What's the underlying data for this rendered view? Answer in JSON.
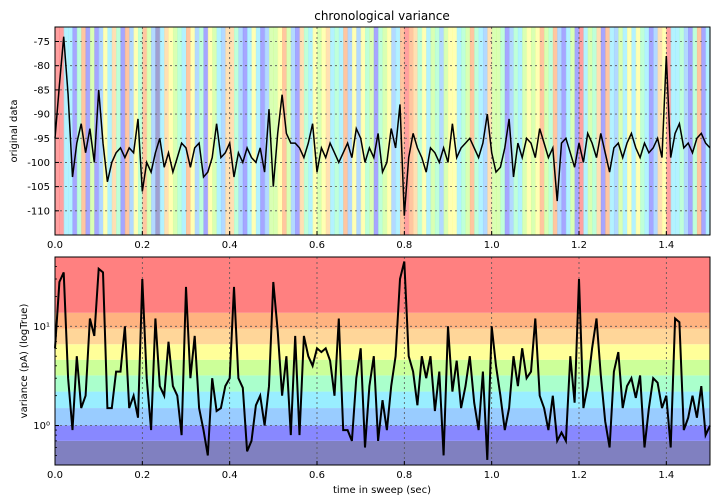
{
  "chart_data": [
    {
      "type": "line",
      "title": "chronological variance",
      "xlabel": "",
      "ylabel": "original data",
      "xlim": [
        0.0,
        1.5
      ],
      "ylim": [
        -115,
        -72
      ],
      "xticks": [
        0.0,
        0.2,
        0.4,
        0.6,
        0.8,
        1.0,
        1.2,
        1.4
      ],
      "xtick_labels": [
        "0.0",
        "0.2",
        "0.4",
        "0.6",
        "0.8",
        "1.0",
        "1.2",
        "1.4"
      ],
      "yticks": [
        -75,
        -80,
        -85,
        -90,
        -95,
        -100,
        -105,
        -110
      ],
      "ytick_labels": [
        "-75",
        "-80",
        "-85",
        "-90",
        "-95",
        "-100",
        "-105",
        "-110"
      ],
      "grid": true,
      "background": "vertical bands colored by variance level of each segment",
      "series": [
        {
          "color": "#000000",
          "x": [
            0.0,
            0.01,
            0.02,
            0.03,
            0.04,
            0.05,
            0.06,
            0.07,
            0.08,
            0.09,
            0.1,
            0.11,
            0.12,
            0.13,
            0.14,
            0.15,
            0.16,
            0.17,
            0.18,
            0.19,
            0.2,
            0.21,
            0.22,
            0.23,
            0.24,
            0.25,
            0.26,
            0.27,
            0.28,
            0.29,
            0.3,
            0.31,
            0.32,
            0.33,
            0.34,
            0.35,
            0.36,
            0.37,
            0.38,
            0.39,
            0.4,
            0.41,
            0.42,
            0.43,
            0.44,
            0.45,
            0.46,
            0.47,
            0.48,
            0.49,
            0.5,
            0.51,
            0.52,
            0.53,
            0.54,
            0.55,
            0.56,
            0.57,
            0.58,
            0.59,
            0.6,
            0.61,
            0.62,
            0.63,
            0.64,
            0.65,
            0.66,
            0.67,
            0.68,
            0.69,
            0.7,
            0.71,
            0.72,
            0.73,
            0.74,
            0.75,
            0.76,
            0.77,
            0.78,
            0.79,
            0.8,
            0.81,
            0.82,
            0.83,
            0.84,
            0.85,
            0.86,
            0.87,
            0.88,
            0.89,
            0.9,
            0.91,
            0.92,
            0.93,
            0.94,
            0.95,
            0.96,
            0.97,
            0.98,
            0.99,
            1.0,
            1.01,
            1.02,
            1.03,
            1.04,
            1.05,
            1.06,
            1.07,
            1.08,
            1.09,
            1.1,
            1.11,
            1.12,
            1.13,
            1.14,
            1.15,
            1.16,
            1.17,
            1.18,
            1.19,
            1.2,
            1.21,
            1.22,
            1.23,
            1.24,
            1.25,
            1.26,
            1.27,
            1.28,
            1.29,
            1.3,
            1.31,
            1.32,
            1.33,
            1.34,
            1.35,
            1.36,
            1.37,
            1.38,
            1.39,
            1.4,
            1.41,
            1.42,
            1.43,
            1.44,
            1.45,
            1.46,
            1.47,
            1.48,
            1.49,
            1.5
          ],
          "y": [
            -95,
            -84,
            -74,
            -86,
            -103,
            -96,
            -92,
            -98,
            -93,
            -100,
            -85,
            -96,
            -104,
            -100,
            -98,
            -97,
            -99,
            -97,
            -98,
            -91,
            -106,
            -100,
            -102,
            -98,
            -95,
            -101,
            -98,
            -102,
            -99,
            -96,
            -97,
            -101,
            -97,
            -96,
            -103,
            -102,
            -99,
            -92,
            -99,
            -98,
            -96,
            -103,
            -98,
            -100,
            -97,
            -99,
            -100,
            -97,
            -102,
            -89,
            -105,
            -94,
            -86,
            -94,
            -96,
            -96,
            -97,
            -99,
            -96,
            -92,
            -102,
            -97,
            -99,
            -96,
            -98,
            -100,
            -98,
            -96,
            -99,
            -93,
            -95,
            -100,
            -97,
            -99,
            -94,
            -102,
            -100,
            -93,
            -97,
            -88,
            -111,
            -99,
            -94,
            -97,
            -99,
            -102,
            -97,
            -98,
            -100,
            -97,
            -100,
            -92,
            -99,
            -97,
            -96,
            -95,
            -97,
            -99,
            -96,
            -90,
            -98,
            -102,
            -101,
            -97,
            -91,
            -103,
            -96,
            -99,
            -95,
            -96,
            -99,
            -93,
            -96,
            -99,
            -97,
            -108,
            -96,
            -95,
            -98,
            -101,
            -96,
            -100,
            -94,
            -96,
            -99,
            -94,
            -98,
            -102,
            -97,
            -96,
            -99,
            -96,
            -94,
            -97,
            -99,
            -96,
            -98,
            -97,
            -95,
            -99,
            -78,
            -99,
            -94,
            -92,
            -97,
            -96,
            -98,
            -95,
            -94,
            -96,
            -97
          ]
        }
      ]
    },
    {
      "type": "line",
      "title": "",
      "xlabel": "time in sweep (sec)",
      "ylabel": "variance (pA) (logTrue)",
      "xlim": [
        0.0,
        1.5
      ],
      "ylim": [
        0.4,
        50
      ],
      "yscale": "log",
      "xticks": [
        0.0,
        0.2,
        0.4,
        0.6,
        0.8,
        1.0,
        1.2,
        1.4
      ],
      "xtick_labels": [
        "0.0",
        "0.2",
        "0.4",
        "0.6",
        "0.8",
        "1.0",
        "1.2",
        "1.4"
      ],
      "yticks": [
        1,
        10
      ],
      "ytick_labels": [
        "10⁰",
        "10¹"
      ],
      "grid": true,
      "background": "horizontal color bands by variance level",
      "series": [
        {
          "color": "#000000",
          "x": [
            0.0,
            0.01,
            0.02,
            0.03,
            0.04,
            0.05,
            0.06,
            0.07,
            0.08,
            0.09,
            0.1,
            0.11,
            0.12,
            0.13,
            0.14,
            0.15,
            0.16,
            0.17,
            0.18,
            0.19,
            0.2,
            0.21,
            0.22,
            0.23,
            0.24,
            0.25,
            0.26,
            0.27,
            0.28,
            0.29,
            0.3,
            0.31,
            0.32,
            0.33,
            0.34,
            0.35,
            0.36,
            0.37,
            0.38,
            0.39,
            0.4,
            0.41,
            0.42,
            0.43,
            0.44,
            0.45,
            0.46,
            0.47,
            0.48,
            0.49,
            0.5,
            0.51,
            0.52,
            0.53,
            0.54,
            0.55,
            0.56,
            0.57,
            0.58,
            0.59,
            0.6,
            0.61,
            0.62,
            0.63,
            0.64,
            0.65,
            0.66,
            0.67,
            0.68,
            0.69,
            0.7,
            0.71,
            0.72,
            0.73,
            0.74,
            0.75,
            0.76,
            0.77,
            0.78,
            0.79,
            0.8,
            0.81,
            0.82,
            0.83,
            0.84,
            0.85,
            0.86,
            0.87,
            0.88,
            0.89,
            0.9,
            0.91,
            0.92,
            0.93,
            0.94,
            0.95,
            0.96,
            0.97,
            0.98,
            0.99,
            1.0,
            1.01,
            1.02,
            1.03,
            1.04,
            1.05,
            1.06,
            1.07,
            1.08,
            1.09,
            1.1,
            1.11,
            1.12,
            1.13,
            1.14,
            1.15,
            1.16,
            1.17,
            1.18,
            1.19,
            1.2,
            1.21,
            1.22,
            1.23,
            1.24,
            1.25,
            1.26,
            1.27,
            1.28,
            1.29,
            1.3,
            1.31,
            1.32,
            1.33,
            1.34,
            1.35,
            1.36,
            1.37,
            1.38,
            1.39,
            1.4,
            1.41,
            1.42,
            1.43,
            1.44,
            1.45,
            1.46,
            1.47,
            1.48,
            1.49,
            1.5
          ],
          "y": [
            6,
            28,
            35,
            3,
            0.9,
            5,
            1.5,
            2,
            12,
            8,
            38,
            35,
            1.5,
            1.5,
            3.5,
            3.5,
            10,
            1.5,
            2,
            1.2,
            30,
            3,
            0.9,
            12,
            2.5,
            2.0,
            7,
            2.5,
            2.0,
            0.8,
            25,
            3,
            8,
            1.5,
            0.9,
            0.5,
            3,
            1.4,
            1.5,
            2.5,
            3,
            25,
            3,
            2.4,
            0.55,
            0.7,
            1.6,
            2,
            1.0,
            2.5,
            28,
            9,
            2,
            5,
            0.8,
            8,
            0.8,
            8,
            5,
            4,
            6,
            5.5,
            6,
            4.5,
            2,
            12,
            0.9,
            0.9,
            0.7,
            3,
            6,
            0.6,
            2.5,
            5,
            0.7,
            1.8,
            0.9,
            2.5,
            5,
            30,
            45,
            5,
            3.5,
            1.6,
            5,
            3,
            5,
            1.4,
            3.5,
            0.5,
            10,
            2.2,
            4.5,
            1.5,
            2.5,
            5,
            1.7,
            0.9,
            3.5,
            0.45,
            10,
            4,
            2,
            0.9,
            1.5,
            5,
            2.5,
            6,
            3,
            3.5,
            12,
            2,
            1.5,
            0.9,
            2,
            0.7,
            0.85,
            0.7,
            5,
            1.7,
            30,
            1.5,
            2.5,
            6,
            12,
            3.2,
            1.1,
            0.6,
            3.5,
            5.5,
            1.5,
            2.5,
            3.0,
            1.9,
            3.2,
            0.6,
            1.5,
            3.0,
            2.7,
            1.5,
            2,
            0.6,
            12,
            11,
            0.9,
            1.2,
            2,
            1.2,
            2.5,
            0.8,
            1.0
          ]
        }
      ]
    }
  ],
  "colors": {
    "line": "#000000",
    "grid": "#555555",
    "axes": "#000000",
    "bands": [
      "#8080c0",
      "#8888ff",
      "#99ccff",
      "#99eeff",
      "#aaffcc",
      "#ccff99",
      "#ffff99",
      "#ffd699",
      "#ffb380",
      "#ff8080"
    ]
  },
  "band_level_thresholds": [
    0.7,
    1.0,
    1.5,
    2.2,
    3.2,
    4.6,
    6.6,
    9.5,
    13.7,
    19.8
  ],
  "top_band_sequence": [
    9,
    9,
    3,
    3,
    1,
    4,
    8,
    1,
    5,
    1,
    2,
    6,
    3,
    7,
    4,
    1,
    8,
    2,
    6,
    4,
    8,
    5,
    2,
    0,
    3,
    7,
    6,
    5,
    4,
    3,
    8,
    6,
    2,
    4,
    1,
    6,
    5,
    3,
    2,
    7,
    7,
    4,
    2,
    1,
    3,
    6,
    3,
    1,
    2,
    5,
    5,
    6,
    8,
    5,
    2,
    1,
    7,
    4,
    3,
    6,
    5,
    6,
    7,
    3,
    4,
    3,
    8,
    2,
    6,
    2,
    6,
    4,
    5,
    1,
    4,
    5,
    6,
    2,
    3,
    8,
    9,
    8,
    7,
    4,
    6,
    3,
    5,
    4,
    2,
    5,
    6,
    6,
    3,
    4,
    5,
    8,
    4,
    3,
    2,
    7,
    5,
    5,
    4,
    1,
    2,
    4,
    3,
    5,
    6,
    5,
    6,
    8,
    5,
    4,
    8,
    2,
    1,
    3,
    5,
    1,
    9,
    3,
    5,
    4,
    7,
    1,
    8,
    3,
    2,
    5,
    3,
    6,
    3,
    6,
    4,
    3,
    1,
    2,
    7,
    6,
    9,
    3,
    3,
    4,
    2,
    1,
    4,
    8,
    1,
    3
  ]
}
